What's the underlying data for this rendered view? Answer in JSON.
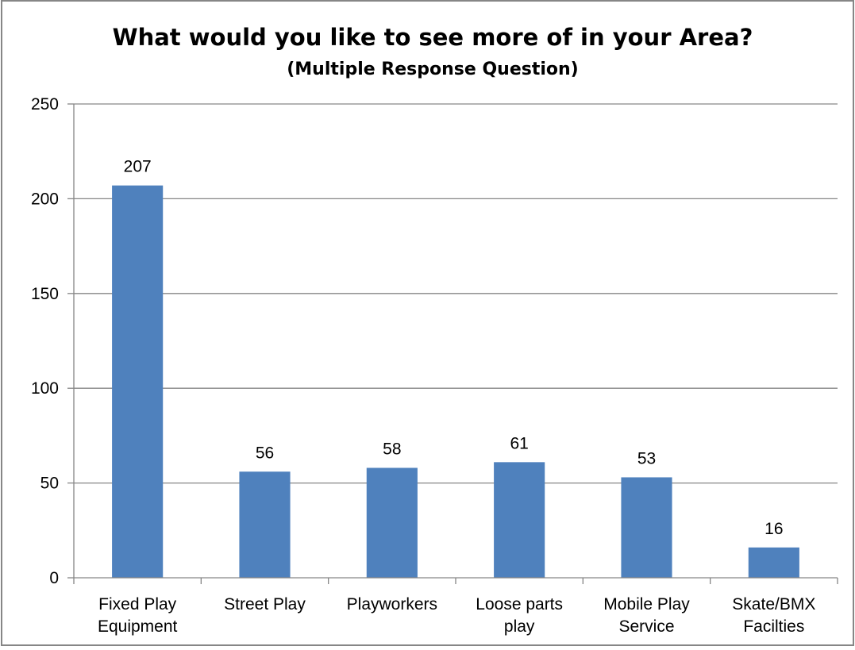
{
  "chart_data": {
    "type": "bar",
    "title": "What would you like to see more of in your Area?",
    "subtitle": "(Multiple Response Question)",
    "xlabel": "",
    "ylabel": "",
    "categories": [
      [
        "Fixed Play",
        "Equipment"
      ],
      [
        "Street Play"
      ],
      [
        "Playworkers"
      ],
      [
        "Loose parts",
        "play"
      ],
      [
        "Mobile Play",
        "Service"
      ],
      [
        "Skate/BMX",
        "Facilties"
      ]
    ],
    "values": [
      207,
      56,
      58,
      61,
      53,
      16
    ],
    "data_labels": [
      "207",
      "56",
      "58",
      "61",
      "53",
      "16"
    ],
    "ylim": [
      0,
      250
    ],
    "yticks": [
      0,
      50,
      100,
      150,
      200,
      250
    ],
    "ytick_labels": [
      "0",
      "50",
      "100",
      "150",
      "200",
      "250"
    ],
    "grid": true,
    "legend": "none",
    "colors": {
      "bar": "#4f81bd",
      "grid": "#868686",
      "axis": "#868686",
      "border": "#868686",
      "text": "#000000"
    }
  }
}
